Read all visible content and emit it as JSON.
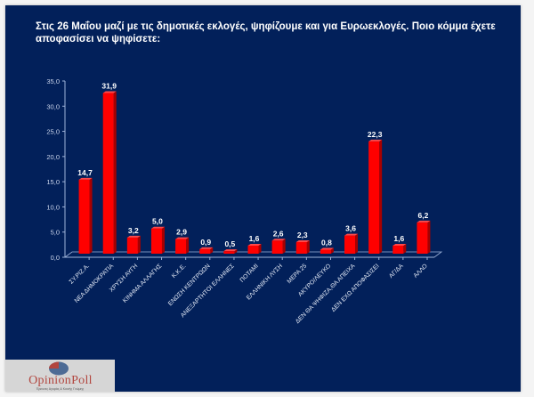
{
  "chart_data": {
    "type": "bar",
    "title": "Στις 26 Μαΐου μαζί με τις δημοτικές εκλογές, ψηφίζουμε και για Ευρωεκλογές. Ποιο κόμμα έχετε αποφασίσει να ψηφίσετε:",
    "xlabel": "",
    "ylabel": "",
    "ylim": [
      0,
      35
    ],
    "yticks": [
      "0,0",
      "5,0",
      "10,0",
      "15,0",
      "20,0",
      "25,0",
      "30,0",
      "35,0"
    ],
    "grid": false,
    "legend": "none",
    "categories": [
      "ΣΥ.ΡΙΖ.Α.",
      "ΝΕΑ ΔΗΜΟΚΡΑΤΙΑ",
      "ΧΡΥΣΗ ΑΥΓΗ",
      "ΚΙΝΗΜΑ ΑΛΛΑΓΗΣ",
      "Κ.Κ.Ε.",
      "ΕΝΩΣΗ ΚΕΝΤΡΩΩΝ",
      "ΑΝΕΞΑΡΤΗΤΟΙ ΕΛΛΗΝΕΣ",
      "ΠΟΤΑΜΙ",
      "ΕΛΛΗΝΙΚΗ ΛΥΣΗ",
      "ΜΕΡΑ 25",
      "ΑΚΥΡΟ/ΛΕΥΚΟ",
      "ΔΕΝ ΘΑ ΨΗΦΙΖΑ,ΘΑ ΑΠΕΙΧΑ",
      "ΔΕΝ ΕΧΩ ΑΠΟΦΑΣΙΣΕΙ",
      "ΑΓ/ΔΑ",
      "ΑΛΛΟ"
    ],
    "values": [
      14.7,
      31.9,
      3.2,
      5.0,
      2.9,
      0.9,
      0.5,
      1.6,
      2.6,
      2.3,
      0.8,
      3.6,
      22.3,
      1.6,
      6.2
    ],
    "value_labels": [
      "14,7",
      "31,9",
      "3,2",
      "5,0",
      "2,9",
      "0,9",
      "0,5",
      "1,6",
      "2,6",
      "2,3",
      "0,8",
      "3,6",
      "22,3",
      "1,6",
      "6,2"
    ],
    "colors": {
      "bar": "#ff0000",
      "bar_dark": "#a80000",
      "background": "#02205a",
      "axis": "#9fb3d9",
      "text": "#ffffff"
    }
  },
  "logo": {
    "name": "OpinionPoll",
    "subtitle": "Έρευνες Αγοράς & Κοινής Γνώμης"
  }
}
